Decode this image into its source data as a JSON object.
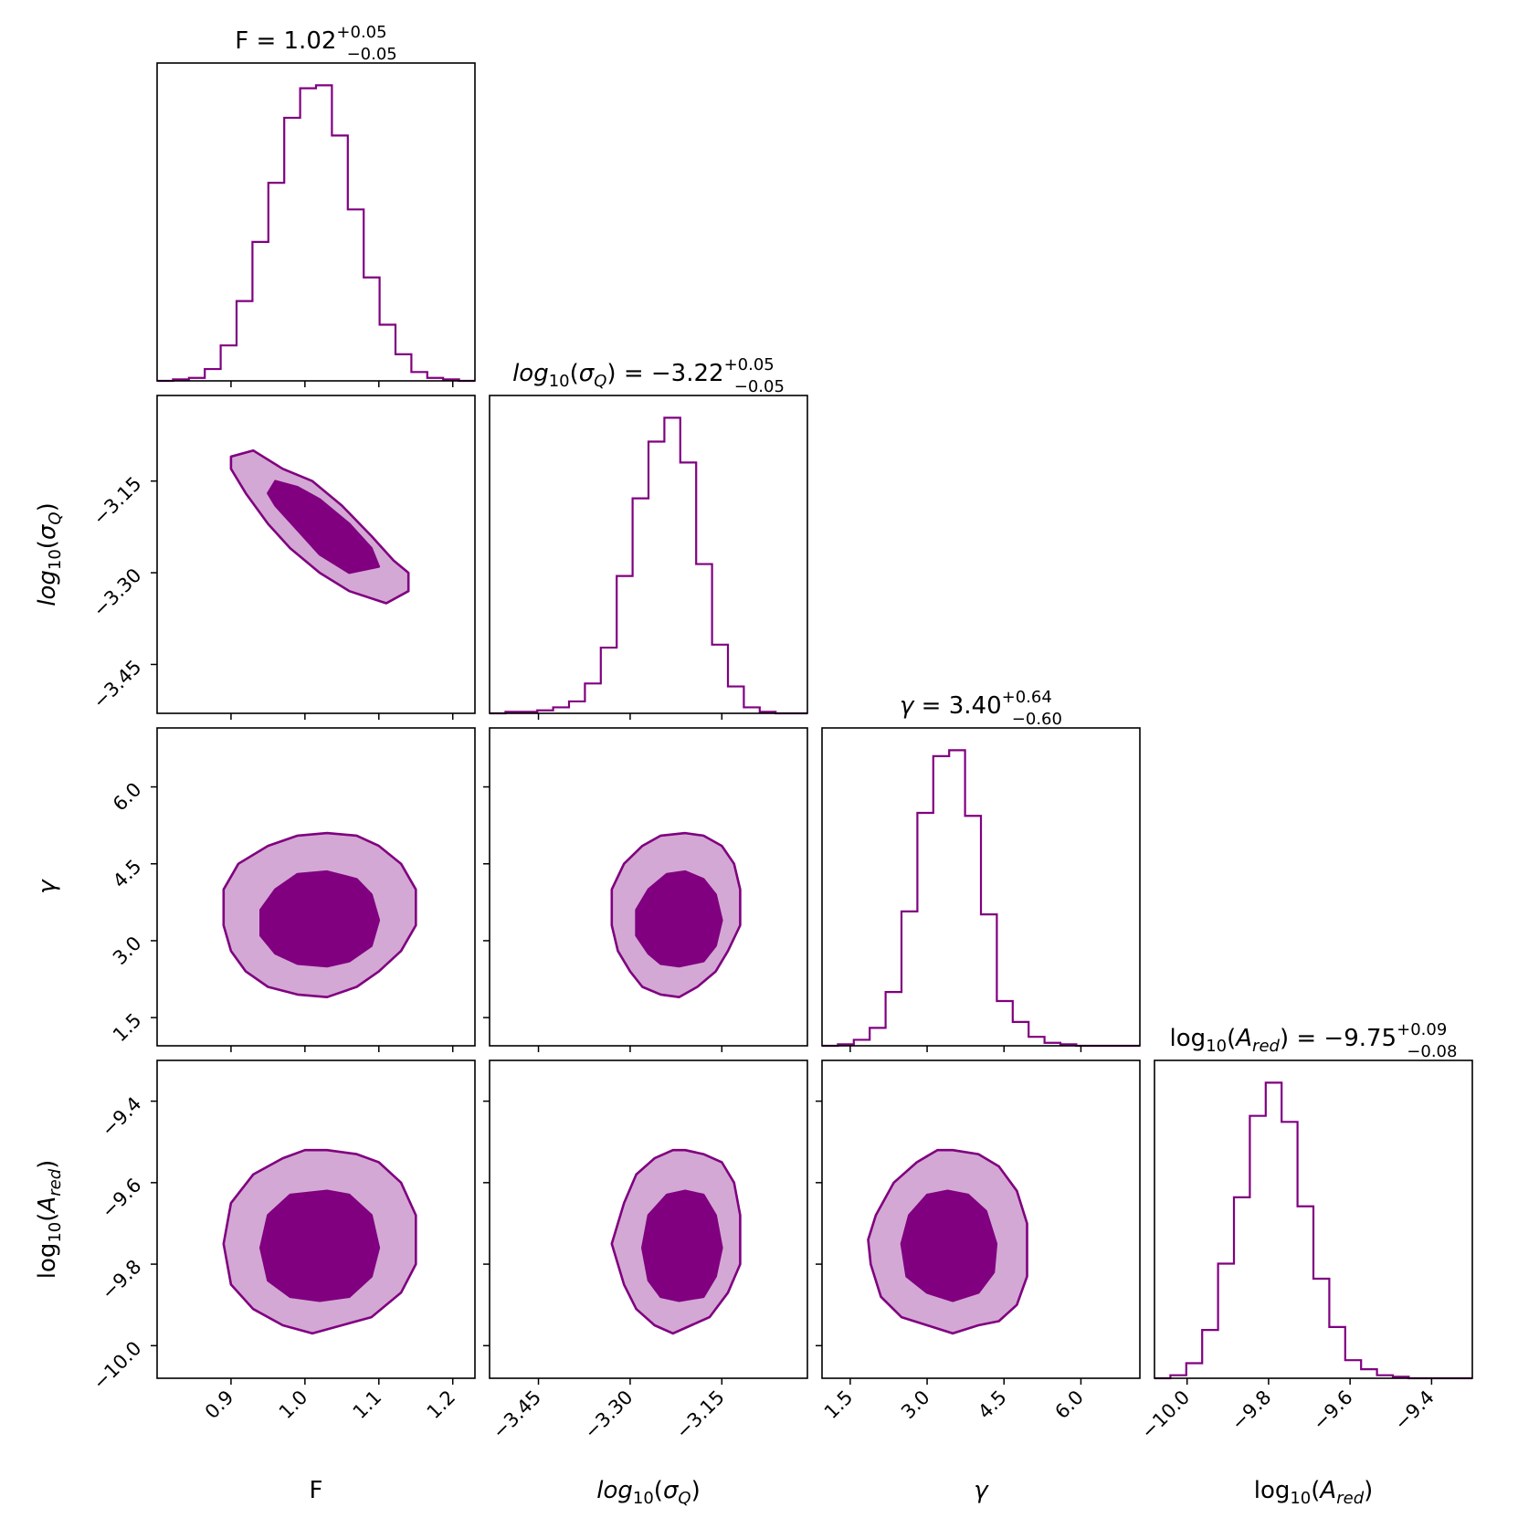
{
  "chart_data": {
    "type": "corner",
    "colors": {
      "line": "#800080",
      "inner_fill": "#800080",
      "outer_fill": "#d4a8d4",
      "frame": "#000000"
    },
    "parameters": [
      {
        "id": "F",
        "label": "F",
        "label_math": {
          "base": "F",
          "sub": "",
          "italic": false
        },
        "title": {
          "prefix": "F = ",
          "value": "1.02",
          "plus": "+0.05",
          "minus": "−0.05"
        },
        "range": [
          0.8,
          1.23
        ],
        "ticks": [
          0.9,
          1.0,
          1.1,
          1.2
        ],
        "tick_labels": [
          "0.9",
          "1.0",
          "1.1",
          "1.2"
        ],
        "hist": {
          "start": 0.8,
          "width": 0.0215,
          "counts": [
            0,
            0.005,
            0.01,
            0.04,
            0.12,
            0.27,
            0.47,
            0.67,
            0.89,
            0.99,
            1.0,
            0.83,
            0.58,
            0.35,
            0.19,
            0.09,
            0.03,
            0.01,
            0.005,
            0
          ]
        },
        "median": 1.02,
        "sigma": 0.05
      },
      {
        "id": "sigmaQ",
        "label": "log10(σQ)",
        "label_math": {
          "base": "log",
          "sub": "10",
          "paren": "σ",
          "psub": "Q",
          "italic": true
        },
        "title": {
          "prefix": "log10(σQ) = ",
          "value": "−3.22",
          "plus": "+0.05",
          "minus": "−0.05"
        },
        "range": [
          -3.53,
          -3.01
        ],
        "ticks": [
          -3.45,
          -3.3,
          -3.15
        ],
        "tick_labels": [
          "−3.45",
          "−3.30",
          "−3.15"
        ],
        "hist": {
          "start": -3.53,
          "width": 0.026,
          "counts": [
            0,
            0.005,
            0.005,
            0.01,
            0.02,
            0.04,
            0.1,
            0.22,
            0.46,
            0.72,
            0.91,
            0.99,
            0.84,
            0.5,
            0.23,
            0.09,
            0.02,
            0.005,
            0,
            0
          ]
        },
        "median": -3.22,
        "sigma": 0.05
      },
      {
        "id": "gamma",
        "label": "γ",
        "label_math": {
          "base": "γ",
          "sub": "",
          "italic": true
        },
        "title": {
          "prefix": "γ = ",
          "value": "3.40",
          "plus": "+0.64",
          "minus": "−0.60"
        },
        "range": [
          0.95,
          7.15
        ],
        "ticks": [
          1.5,
          3.0,
          4.5,
          6.0
        ],
        "tick_labels": [
          "1.5",
          "3.0",
          "4.5",
          "6.0"
        ],
        "hist": {
          "start": 0.95,
          "width": 0.31,
          "counts": [
            0,
            0.005,
            0.02,
            0.06,
            0.18,
            0.45,
            0.78,
            0.97,
            0.99,
            0.77,
            0.44,
            0.15,
            0.08,
            0.03,
            0.01,
            0.005,
            0,
            0,
            0,
            0
          ]
        },
        "median": 3.4,
        "sigma": 0.62
      },
      {
        "id": "Ared",
        "label": "log10(Ared)",
        "label_math": {
          "base": "log",
          "sub": "10",
          "paren": "A",
          "psub": "red",
          "italic": false
        },
        "title": {
          "prefix": "log10(Ared) = ",
          "value": "−9.75",
          "plus": "+0.09",
          "minus": "−0.08"
        },
        "range": [
          -10.08,
          -9.3
        ],
        "ticks": [
          -10.0,
          -9.8,
          -9.6,
          -9.4
        ],
        "tick_labels": [
          "−10.0",
          "−9.8",
          "−9.6",
          "−9.4"
        ],
        "hist": {
          "start": -10.08,
          "width": 0.039,
          "counts": [
            0,
            0.01,
            0.05,
            0.16,
            0.38,
            0.6,
            0.87,
            0.98,
            0.85,
            0.57,
            0.33,
            0.17,
            0.06,
            0.03,
            0.01,
            0.005,
            0,
            0,
            0,
            0
          ]
        },
        "median": -9.75,
        "sigma": 0.085
      }
    ],
    "contours": [
      {
        "row": 1,
        "col": 0,
        "levels": [
          "39%",
          "86%"
        ],
        "outer": [
          [
            0.9,
            -3.11
          ],
          [
            0.93,
            -3.1
          ],
          [
            0.97,
            -3.13
          ],
          [
            1.01,
            -3.15
          ],
          [
            1.05,
            -3.19
          ],
          [
            1.09,
            -3.24
          ],
          [
            1.12,
            -3.28
          ],
          [
            1.14,
            -3.3
          ],
          [
            1.14,
            -3.33
          ],
          [
            1.11,
            -3.35
          ],
          [
            1.06,
            -3.33
          ],
          [
            1.02,
            -3.3
          ],
          [
            0.98,
            -3.26
          ],
          [
            0.95,
            -3.22
          ],
          [
            0.92,
            -3.17
          ],
          [
            0.9,
            -3.13
          ]
        ],
        "inner": [
          [
            0.96,
            -3.15
          ],
          [
            0.99,
            -3.16
          ],
          [
            1.02,
            -3.18
          ],
          [
            1.06,
            -3.22
          ],
          [
            1.09,
            -3.26
          ],
          [
            1.1,
            -3.29
          ],
          [
            1.06,
            -3.3
          ],
          [
            1.02,
            -3.27
          ],
          [
            0.99,
            -3.23
          ],
          [
            0.96,
            -3.19
          ],
          [
            0.95,
            -3.17
          ]
        ]
      },
      {
        "row": 2,
        "col": 0,
        "levels": [
          "39%",
          "86%"
        ],
        "outer": [
          [
            1.03,
            5.1
          ],
          [
            1.07,
            5.05
          ],
          [
            1.1,
            4.85
          ],
          [
            1.13,
            4.5
          ],
          [
            1.15,
            4.0
          ],
          [
            1.15,
            3.3
          ],
          [
            1.13,
            2.8
          ],
          [
            1.1,
            2.4
          ],
          [
            1.07,
            2.1
          ],
          [
            1.03,
            1.9
          ],
          [
            0.99,
            1.95
          ],
          [
            0.95,
            2.1
          ],
          [
            0.92,
            2.4
          ],
          [
            0.9,
            2.8
          ],
          [
            0.89,
            3.3
          ],
          [
            0.89,
            4.0
          ],
          [
            0.91,
            4.5
          ],
          [
            0.95,
            4.85
          ],
          [
            0.99,
            5.05
          ]
        ],
        "inner": [
          [
            1.03,
            4.35
          ],
          [
            1.07,
            4.2
          ],
          [
            1.09,
            3.9
          ],
          [
            1.1,
            3.4
          ],
          [
            1.09,
            2.9
          ],
          [
            1.06,
            2.6
          ],
          [
            1.03,
            2.5
          ],
          [
            0.99,
            2.55
          ],
          [
            0.96,
            2.75
          ],
          [
            0.94,
            3.1
          ],
          [
            0.94,
            3.6
          ],
          [
            0.96,
            4.0
          ],
          [
            0.99,
            4.3
          ]
        ]
      },
      {
        "row": 2,
        "col": 1,
        "levels": [
          "39%",
          "86%"
        ],
        "outer": [
          [
            -3.21,
            5.1
          ],
          [
            -3.18,
            5.05
          ],
          [
            -3.15,
            4.85
          ],
          [
            -3.13,
            4.5
          ],
          [
            -3.12,
            4.0
          ],
          [
            -3.12,
            3.3
          ],
          [
            -3.14,
            2.8
          ],
          [
            -3.16,
            2.4
          ],
          [
            -3.19,
            2.1
          ],
          [
            -3.22,
            1.9
          ],
          [
            -3.25,
            1.95
          ],
          [
            -3.28,
            2.1
          ],
          [
            -3.3,
            2.4
          ],
          [
            -3.32,
            2.8
          ],
          [
            -3.33,
            3.3
          ],
          [
            -3.33,
            4.0
          ],
          [
            -3.31,
            4.5
          ],
          [
            -3.28,
            4.85
          ],
          [
            -3.25,
            5.05
          ]
        ],
        "inner": [
          [
            -3.21,
            4.35
          ],
          [
            -3.18,
            4.2
          ],
          [
            -3.16,
            3.9
          ],
          [
            -3.15,
            3.4
          ],
          [
            -3.16,
            2.9
          ],
          [
            -3.18,
            2.6
          ],
          [
            -3.22,
            2.5
          ],
          [
            -3.25,
            2.55
          ],
          [
            -3.27,
            2.75
          ],
          [
            -3.29,
            3.1
          ],
          [
            -3.29,
            3.6
          ],
          [
            -3.27,
            4.0
          ],
          [
            -3.24,
            4.3
          ]
        ]
      },
      {
        "row": 3,
        "col": 0,
        "levels": [
          "39%",
          "86%"
        ],
        "outer": [
          [
            1.03,
            -9.52
          ],
          [
            1.07,
            -9.53
          ],
          [
            1.1,
            -9.55
          ],
          [
            1.13,
            -9.6
          ],
          [
            1.15,
            -9.68
          ],
          [
            1.15,
            -9.8
          ],
          [
            1.13,
            -9.87
          ],
          [
            1.09,
            -9.93
          ],
          [
            1.05,
            -9.95
          ],
          [
            1.01,
            -9.97
          ],
          [
            0.97,
            -9.95
          ],
          [
            0.93,
            -9.91
          ],
          [
            0.9,
            -9.85
          ],
          [
            0.89,
            -9.75
          ],
          [
            0.9,
            -9.65
          ],
          [
            0.93,
            -9.58
          ],
          [
            0.97,
            -9.54
          ],
          [
            1.0,
            -9.52
          ]
        ],
        "inner": [
          [
            1.03,
            -9.62
          ],
          [
            1.06,
            -9.63
          ],
          [
            1.09,
            -9.68
          ],
          [
            1.1,
            -9.76
          ],
          [
            1.09,
            -9.83
          ],
          [
            1.06,
            -9.88
          ],
          [
            1.02,
            -9.89
          ],
          [
            0.98,
            -9.88
          ],
          [
            0.95,
            -9.84
          ],
          [
            0.94,
            -9.76
          ],
          [
            0.95,
            -9.68
          ],
          [
            0.98,
            -9.63
          ]
        ]
      },
      {
        "row": 3,
        "col": 1,
        "levels": [
          "39%",
          "86%"
        ],
        "outer": [
          [
            -3.21,
            -9.52
          ],
          [
            -3.18,
            -9.53
          ],
          [
            -3.15,
            -9.55
          ],
          [
            -3.13,
            -9.6
          ],
          [
            -3.12,
            -9.68
          ],
          [
            -3.12,
            -9.8
          ],
          [
            -3.14,
            -9.87
          ],
          [
            -3.17,
            -9.93
          ],
          [
            -3.2,
            -9.95
          ],
          [
            -3.23,
            -9.97
          ],
          [
            -3.26,
            -9.95
          ],
          [
            -3.29,
            -9.91
          ],
          [
            -3.31,
            -9.85
          ],
          [
            -3.33,
            -9.75
          ],
          [
            -3.31,
            -9.65
          ],
          [
            -3.29,
            -9.58
          ],
          [
            -3.26,
            -9.54
          ],
          [
            -3.23,
            -9.52
          ]
        ],
        "inner": [
          [
            -3.21,
            -9.62
          ],
          [
            -3.18,
            -9.63
          ],
          [
            -3.16,
            -9.68
          ],
          [
            -3.15,
            -9.76
          ],
          [
            -3.16,
            -9.83
          ],
          [
            -3.18,
            -9.88
          ],
          [
            -3.22,
            -9.89
          ],
          [
            -3.25,
            -9.88
          ],
          [
            -3.27,
            -9.84
          ],
          [
            -3.28,
            -9.76
          ],
          [
            -3.27,
            -9.68
          ],
          [
            -3.24,
            -9.63
          ]
        ]
      },
      {
        "row": 3,
        "col": 2,
        "levels": [
          "39%",
          "86%"
        ],
        "outer": [
          [
            3.5,
            -9.52
          ],
          [
            4.0,
            -9.53
          ],
          [
            4.4,
            -9.56
          ],
          [
            4.75,
            -9.62
          ],
          [
            4.95,
            -9.7
          ],
          [
            4.95,
            -9.83
          ],
          [
            4.75,
            -9.9
          ],
          [
            4.4,
            -9.94
          ],
          [
            4.0,
            -9.95
          ],
          [
            3.5,
            -9.97
          ],
          [
            3.0,
            -9.95
          ],
          [
            2.5,
            -9.93
          ],
          [
            2.1,
            -9.88
          ],
          [
            1.9,
            -9.8
          ],
          [
            1.85,
            -9.74
          ],
          [
            2.0,
            -9.68
          ],
          [
            2.35,
            -9.6
          ],
          [
            2.8,
            -9.55
          ],
          [
            3.2,
            -9.52
          ]
        ],
        "inner": [
          [
            3.4,
            -9.62
          ],
          [
            3.8,
            -9.63
          ],
          [
            4.15,
            -9.67
          ],
          [
            4.35,
            -9.75
          ],
          [
            4.3,
            -9.82
          ],
          [
            4.0,
            -9.87
          ],
          [
            3.5,
            -9.89
          ],
          [
            3.0,
            -9.87
          ],
          [
            2.6,
            -9.83
          ],
          [
            2.5,
            -9.75
          ],
          [
            2.65,
            -9.68
          ],
          [
            3.0,
            -9.63
          ]
        ]
      }
    ]
  }
}
